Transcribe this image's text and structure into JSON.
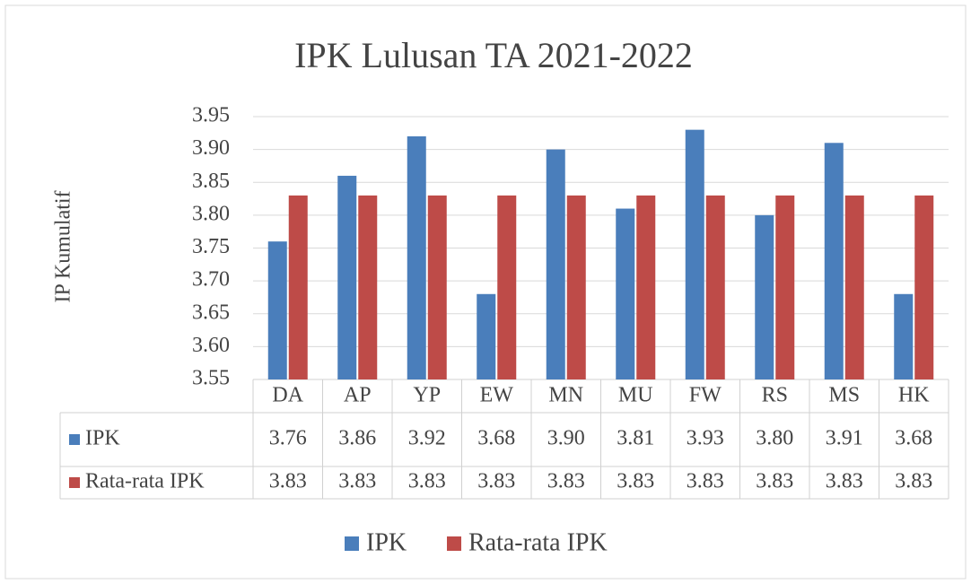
{
  "chart_data": {
    "type": "bar",
    "title": "IPK Lulusan TA 2021-2022",
    "y_label": "IP Kumulatif",
    "categories": [
      "DA",
      "AP",
      "YP",
      "EW",
      "MN",
      "MU",
      "FW",
      "RS",
      "MS",
      "HK"
    ],
    "series": [
      {
        "name": "IPK",
        "color": "#4a7ebb",
        "values": [
          3.76,
          3.86,
          3.92,
          3.68,
          3.9,
          3.81,
          3.93,
          3.8,
          3.91,
          3.68
        ],
        "value_labels": [
          "3.76",
          "3.86",
          "3.92",
          "3.68",
          "3.90",
          "3.81",
          "3.93",
          "3.80",
          "3.91",
          "3.68"
        ]
      },
      {
        "name": "Rata-rata IPK",
        "color": "#be4b48",
        "values": [
          3.83,
          3.83,
          3.83,
          3.83,
          3.83,
          3.83,
          3.83,
          3.83,
          3.83,
          3.83
        ]
      }
    ],
    "ylim": [
      3.55,
      3.95
    ],
    "yticks": [
      3.55,
      {
        "value": 3.6,
        "label": "3.60"
      },
      3.65,
      {
        "value": 3.7,
        "label": "3.70"
      },
      3.75,
      {
        "value": 3.8,
        "label": "3.80"
      },
      3.85,
      {
        "value": 3.9,
        "label": "3.90"
      },
      3.95
    ],
    "grid": true,
    "legend": "bottom"
  }
}
